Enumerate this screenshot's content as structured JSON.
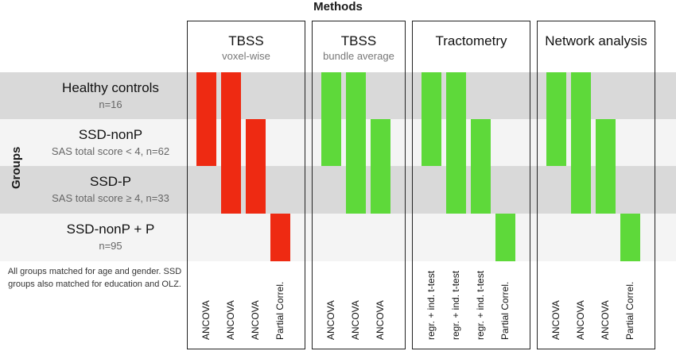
{
  "header": {
    "methods_label": "Methods",
    "groups_label": "Groups"
  },
  "groups": [
    {
      "name": "Healthy controls",
      "detail": "n=16"
    },
    {
      "name": "SSD-nonP",
      "detail": "SAS total score < 4, n=62"
    },
    {
      "name": "SSD-P",
      "detail": "SAS total score ≥ 4, n=33"
    },
    {
      "name": "SSD-nonP + P",
      "detail": "n=95"
    }
  ],
  "note": "All groups matched for age and gender. SSD groups also matched for education and OLZ.",
  "methods": [
    {
      "title": "TBSS",
      "subtitle": "voxel-wise",
      "color": "#ee2a12",
      "tests": [
        {
          "label": "ANCOVA",
          "groups": [
            1,
            2
          ]
        },
        {
          "label": "ANCOVA",
          "groups": [
            1,
            3
          ]
        },
        {
          "label": "ANCOVA",
          "groups": [
            2,
            3
          ]
        },
        {
          "label": "Partial Correl.",
          "groups": [
            4
          ]
        }
      ]
    },
    {
      "title": "TBSS",
      "subtitle": "bundle average",
      "color": "#5ed93a",
      "tests": [
        {
          "label": "ANCOVA",
          "groups": [
            1,
            2
          ]
        },
        {
          "label": "ANCOVA",
          "groups": [
            1,
            3
          ]
        },
        {
          "label": "ANCOVA",
          "groups": [
            2,
            3
          ]
        }
      ]
    },
    {
      "title": "Tractometry",
      "subtitle": "",
      "color": "#5ed93a",
      "tests": [
        {
          "label": "regr. + ind. t-test",
          "groups": [
            1,
            2
          ]
        },
        {
          "label": "regr. + ind. t-test",
          "groups": [
            1,
            3
          ]
        },
        {
          "label": "regr. + ind. t-test",
          "groups": [
            2,
            3
          ]
        },
        {
          "label": "Partial Correl.",
          "groups": [
            4
          ]
        }
      ]
    },
    {
      "title": "Network analysis",
      "subtitle": "",
      "color": "#5ed93a",
      "tests": [
        {
          "label": "ANCOVA",
          "groups": [
            1,
            2
          ]
        },
        {
          "label": "ANCOVA",
          "groups": [
            1,
            3
          ]
        },
        {
          "label": "ANCOVA",
          "groups": [
            2,
            3
          ]
        },
        {
          "label": "Partial Correl.",
          "groups": [
            4
          ]
        }
      ]
    }
  ]
}
